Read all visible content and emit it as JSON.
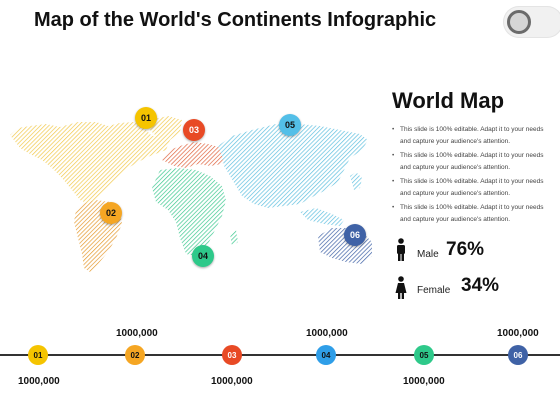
{
  "title": "Map of the World's Continents Infographic",
  "colors": {
    "yellow": "#f5c400",
    "orange": "#f5a623",
    "red": "#e84a25",
    "blue": "#2f9ee8",
    "green": "#2ec98a",
    "navy": "#3f62a6",
    "skyblue": "#53bfe8"
  },
  "map": {
    "pins": [
      "01",
      "02",
      "03",
      "04",
      "05",
      "06"
    ]
  },
  "panel": {
    "heading": "World Map",
    "bullets": [
      "This slide is 100% editable. Adapt it to your needs and capture your audience's attention.",
      "This slide is 100% editable. Adapt it to your needs and capture your audience's attention.",
      "This slide is 100% editable. Adapt it to your needs and capture your audience's attention.",
      "This slide is 100% editable. Adapt it to your needs and capture your audience's attention."
    ],
    "male_label": "Male",
    "male_value": "76%",
    "female_label": "Female",
    "female_value": "34%",
    "male_icon": "male-person-icon",
    "female_icon": "female-person-icon"
  },
  "timeline": {
    "nodes": [
      "01",
      "02",
      "03",
      "04",
      "05",
      "06"
    ],
    "labels_top": [
      "1000,000",
      "1000,000",
      "1000,000"
    ],
    "labels_bottom": [
      "1000,000",
      "1000,000",
      "1000,000"
    ]
  }
}
